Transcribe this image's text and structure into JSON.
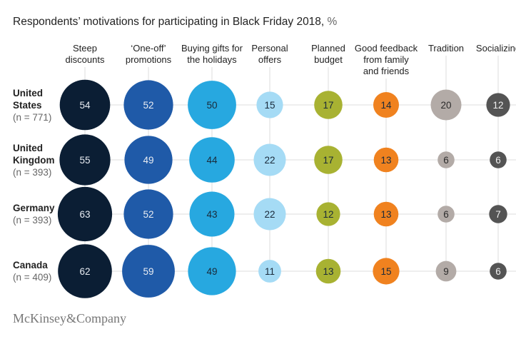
{
  "chart_data": {
    "type": "bubble-matrix",
    "title": "Respondents’ motivations for participating in Black Friday 2018,",
    "unit": "%",
    "columns": [
      {
        "label": [
          "Steep",
          "discounts"
        ],
        "color": "#0b1e34",
        "text_color": "#e8ecf2"
      },
      {
        "label": [
          "‘One-off’",
          "promotions"
        ],
        "color": "#1f5aa8",
        "text_color": "#e8ecf2"
      },
      {
        "label": [
          "Buying gifts for",
          "the holidays"
        ],
        "color": "#27a8e0",
        "text_color": "#1a2a3a"
      },
      {
        "label": [
          "Personal",
          "offers"
        ],
        "color": "#a5dbf5",
        "text_color": "#1a2a3a"
      },
      {
        "label": [
          "Planned",
          "budget"
        ],
        "color": "#a8b232",
        "text_color": "#1a2a3a"
      },
      {
        "label": [
          "Good feedback",
          "from family",
          "and friends"
        ],
        "color": "#f0821f",
        "text_color": "#1a2a3a"
      },
      {
        "label": [
          "Tradition"
        ],
        "color": "#b3aba7",
        "text_color": "#2a2a2a"
      },
      {
        "label": [
          "Socializing"
        ],
        "color": "#545454",
        "text_color": "#f0f0f0"
      }
    ],
    "rows": [
      {
        "label": [
          "United",
          "States"
        ],
        "n": "(n = 771)",
        "values": [
          54,
          52,
          50,
          15,
          17,
          14,
          20,
          12
        ]
      },
      {
        "label": [
          "United",
          "Kingdom"
        ],
        "n": "(n = 393)",
        "values": [
          55,
          49,
          44,
          22,
          17,
          13,
          6,
          6
        ]
      },
      {
        "label": [
          "Germany"
        ],
        "n": "(n = 393)",
        "values": [
          63,
          52,
          43,
          22,
          12,
          13,
          6,
          7
        ]
      },
      {
        "label": [
          "Canada"
        ],
        "n": "(n = 409)",
        "values": [
          62,
          59,
          49,
          11,
          13,
          15,
          9,
          6
        ]
      }
    ],
    "grid_color": "#dcdcdc"
  },
  "footer": {
    "logo": "McKinsey&Company"
  }
}
